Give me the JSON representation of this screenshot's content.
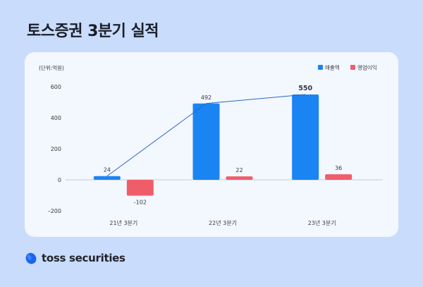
{
  "title": "토스증권 3분기 실적",
  "brand": {
    "name": "toss securities",
    "logo_icon": "toss-blue-tilted-circle-icon",
    "logo_color": "#1b64f2"
  },
  "colors": {
    "background": "#c9dcfb",
    "card": "#f3f7fe",
    "revenue": "#1b84f3",
    "profit": "#f05d6a",
    "line": "#2a66c8"
  },
  "chart_data": {
    "type": "bar",
    "unit_label": "(단위:억원)",
    "categories": [
      "21년 3분기",
      "22년 3분기",
      "23년 3분기"
    ],
    "series": [
      {
        "name": "매출액",
        "values": [
          24,
          492,
          550
        ],
        "labels": [
          "24",
          "492",
          "550"
        ]
      },
      {
        "name": "영업이익",
        "values": [
          -102,
          22,
          36
        ],
        "labels": [
          "-102",
          "22",
          "36"
        ]
      }
    ],
    "trend_line_series": "매출액",
    "ylim": [
      -200,
      600
    ],
    "yticks": [
      {
        "value": 600,
        "label": "600"
      },
      {
        "value": 400,
        "label": "400"
      },
      {
        "value": 200,
        "label": "200"
      },
      {
        "value": 0,
        "label": "0"
      },
      {
        "value": -200,
        "label": "–200"
      }
    ],
    "legend_position": "top-right",
    "grid": false,
    "baseline": true
  }
}
